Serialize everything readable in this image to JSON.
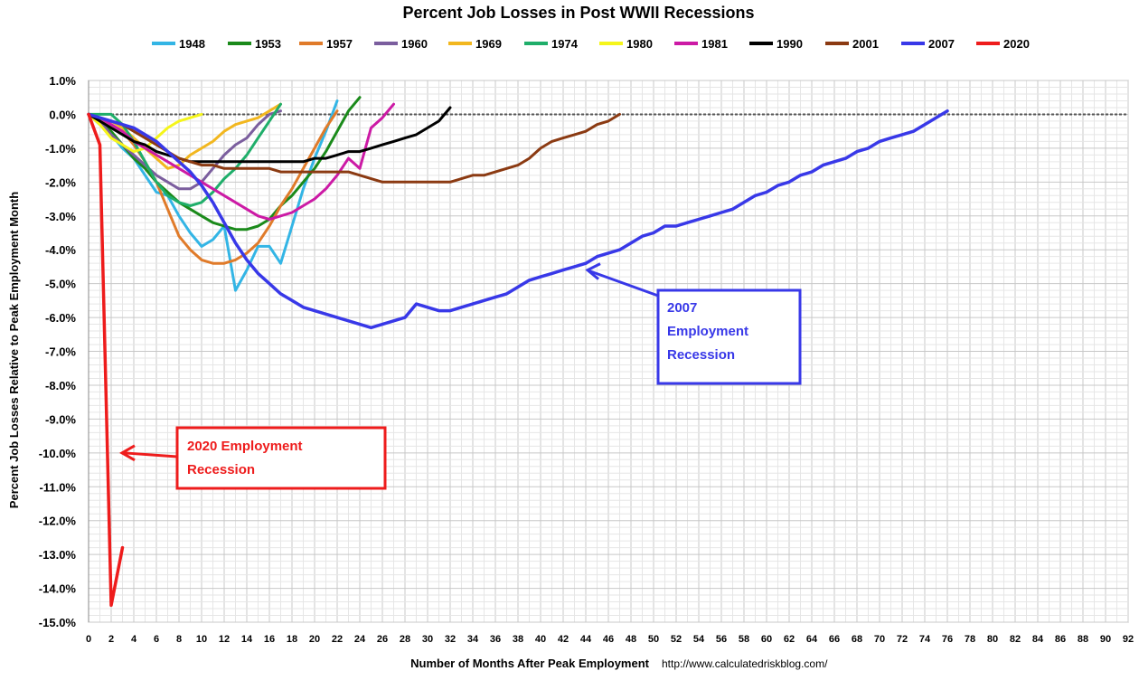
{
  "chart_data": {
    "type": "line",
    "title": "Percent Job Losses in Post WWII Recessions",
    "xlabel": "Number of Months After Peak Employment",
    "ylabel": "Percent Job Losses Relative to Peak Employment Month",
    "source_text": "http://www.calculatedriskblog.com/",
    "xlim": [
      0,
      92
    ],
    "ylim": [
      -15,
      1
    ],
    "x_ticks": [
      0,
      2,
      4,
      6,
      8,
      10,
      12,
      14,
      16,
      18,
      20,
      22,
      24,
      26,
      28,
      30,
      32,
      34,
      36,
      38,
      40,
      42,
      44,
      46,
      48,
      50,
      52,
      54,
      56,
      58,
      60,
      62,
      64,
      66,
      68,
      70,
      72,
      74,
      76,
      78,
      80,
      82,
      84,
      86,
      88,
      90,
      92
    ],
    "y_ticks": [
      "1.0%",
      "0.0%",
      "-1.0%",
      "-2.0%",
      "-3.0%",
      "-4.0%",
      "-5.0%",
      "-6.0%",
      "-7.0%",
      "-8.0%",
      "-9.0%",
      "-10.0%",
      "-11.0%",
      "-12.0%",
      "-13.0%",
      "-14.0%",
      "-15.0%"
    ],
    "grid": true,
    "legend_position": "top",
    "series": [
      {
        "name": "1948",
        "color": "#33b5e5",
        "values": [
          0,
          -0.3,
          -0.6,
          -1.0,
          -1.3,
          -1.8,
          -2.3,
          -2.4,
          -3.0,
          -3.5,
          -3.9,
          -3.7,
          -3.3,
          -5.2,
          -4.6,
          -3.9,
          -3.9,
          -4.4,
          -3.3,
          -2.2,
          -1.3,
          -0.5,
          0.4
        ]
      },
      {
        "name": "1953",
        "color": "#1a8a1a",
        "values": [
          0,
          -0.2,
          -0.5,
          -0.9,
          -1.3,
          -1.6,
          -2.0,
          -2.3,
          -2.6,
          -2.8,
          -3.0,
          -3.2,
          -3.3,
          -3.4,
          -3.4,
          -3.3,
          -3.1,
          -2.7,
          -2.4,
          -2.0,
          -1.6,
          -1.1,
          -0.5,
          0.1,
          0.5
        ]
      },
      {
        "name": "1957",
        "color": "#e07b2a",
        "values": [
          0,
          -0.1,
          -0.3,
          -0.5,
          -0.9,
          -1.4,
          -2.0,
          -2.8,
          -3.6,
          -4.0,
          -4.3,
          -4.4,
          -4.4,
          -4.3,
          -4.1,
          -3.8,
          -3.3,
          -2.7,
          -2.2,
          -1.6,
          -1.0,
          -0.4,
          0.1
        ]
      },
      {
        "name": "1960",
        "color": "#7b5e9e",
        "values": [
          0,
          -0.2,
          -0.6,
          -0.9,
          -1.2,
          -1.5,
          -1.8,
          -2.0,
          -2.2,
          -2.2,
          -2.0,
          -1.6,
          -1.2,
          -0.9,
          -0.7,
          -0.3,
          0,
          0.1
        ]
      },
      {
        "name": "1969",
        "color": "#f2b71f",
        "values": [
          0,
          -0.1,
          -0.2,
          -0.4,
          -0.7,
          -1.0,
          -1.3,
          -1.6,
          -1.5,
          -1.2,
          -1.0,
          -0.8,
          -0.5,
          -0.3,
          -0.2,
          -0.1,
          0.1,
          0.3
        ]
      },
      {
        "name": "1974",
        "color": "#1fae6a",
        "values": [
          0,
          0,
          0,
          -0.3,
          -0.8,
          -1.4,
          -2.0,
          -2.4,
          -2.6,
          -2.7,
          -2.6,
          -2.3,
          -1.9,
          -1.6,
          -1.2,
          -0.7,
          -0.2,
          0.3
        ]
      },
      {
        "name": "1980",
        "color": "#f5f51a",
        "values": [
          0,
          -0.3,
          -0.7,
          -0.9,
          -1.1,
          -1.0,
          -0.7,
          -0.4,
          -0.2,
          -0.1,
          0
        ]
      },
      {
        "name": "1981",
        "color": "#cc1aa5",
        "values": [
          0,
          -0.1,
          -0.3,
          -0.5,
          -0.8,
          -1.0,
          -1.2,
          -1.4,
          -1.6,
          -1.8,
          -2.0,
          -2.2,
          -2.4,
          -2.6,
          -2.8,
          -3.0,
          -3.1,
          -3.0,
          -2.9,
          -2.7,
          -2.5,
          -2.2,
          -1.8,
          -1.3,
          -1.6,
          -0.4,
          -0.1,
          0.3
        ]
      },
      {
        "name": "1990",
        "color": "#000000",
        "values": [
          0,
          -0.2,
          -0.4,
          -0.6,
          -0.8,
          -0.9,
          -1.1,
          -1.2,
          -1.3,
          -1.4,
          -1.4,
          -1.4,
          -1.4,
          -1.4,
          -1.4,
          -1.4,
          -1.4,
          -1.4,
          -1.4,
          -1.4,
          -1.3,
          -1.3,
          -1.2,
          -1.1,
          -1.1,
          -1.0,
          -0.9,
          -0.8,
          -0.7,
          -0.6,
          -0.4,
          -0.2,
          0.2
        ]
      },
      {
        "name": "2001",
        "color": "#8b3a12",
        "values": [
          0,
          -0.1,
          -0.2,
          -0.3,
          -0.5,
          -0.7,
          -0.9,
          -1.1,
          -1.3,
          -1.4,
          -1.5,
          -1.5,
          -1.6,
          -1.6,
          -1.6,
          -1.6,
          -1.6,
          -1.7,
          -1.7,
          -1.7,
          -1.7,
          -1.7,
          -1.7,
          -1.7,
          -1.8,
          -1.9,
          -2.0,
          -2.0,
          -2.0,
          -2.0,
          -2.0,
          -2.0,
          -2.0,
          -1.9,
          -1.8,
          -1.8,
          -1.7,
          -1.6,
          -1.5,
          -1.3,
          -1.0,
          -0.8,
          -0.7,
          -0.6,
          -0.5,
          -0.3,
          -0.2,
          0
        ]
      },
      {
        "name": "2007",
        "color": "#3838e8",
        "values": [
          0,
          -0.1,
          -0.2,
          -0.3,
          -0.4,
          -0.6,
          -0.8,
          -1.1,
          -1.4,
          -1.7,
          -2.1,
          -2.6,
          -3.2,
          -3.8,
          -4.3,
          -4.7,
          -5.0,
          -5.3,
          -5.5,
          -5.7,
          -5.8,
          -5.9,
          -6.0,
          -6.1,
          -6.2,
          -6.3,
          -6.2,
          -6.1,
          -6.0,
          -5.6,
          -5.7,
          -5.8,
          -5.8,
          -5.7,
          -5.6,
          -5.5,
          -5.4,
          -5.3,
          -5.1,
          -4.9,
          -4.8,
          -4.7,
          -4.6,
          -4.5,
          -4.4,
          -4.2,
          -4.1,
          -4.0,
          -3.8,
          -3.6,
          -3.5,
          -3.3,
          -3.3,
          -3.2,
          -3.1,
          -3.0,
          -2.9,
          -2.8,
          -2.6,
          -2.4,
          -2.3,
          -2.1,
          -2.0,
          -1.8,
          -1.7,
          -1.5,
          -1.4,
          -1.3,
          -1.1,
          -1.0,
          -0.8,
          -0.7,
          -0.6,
          -0.5,
          -0.3,
          -0.1,
          0.1
        ]
      },
      {
        "name": "2020",
        "color": "#ee1c1c",
        "values": [
          0,
          -0.9,
          -14.5,
          -12.8
        ]
      }
    ],
    "annotations": [
      {
        "text_lines": [
          "2007",
          "Employment",
          "Recession"
        ],
        "color": "#3838e8",
        "arrow_to": [
          44,
          -4.6
        ]
      },
      {
        "text_lines": [
          "2020 Employment",
          "Recession"
        ],
        "color": "#ee1c1c",
        "arrow_to": [
          2,
          -10
        ]
      }
    ]
  }
}
